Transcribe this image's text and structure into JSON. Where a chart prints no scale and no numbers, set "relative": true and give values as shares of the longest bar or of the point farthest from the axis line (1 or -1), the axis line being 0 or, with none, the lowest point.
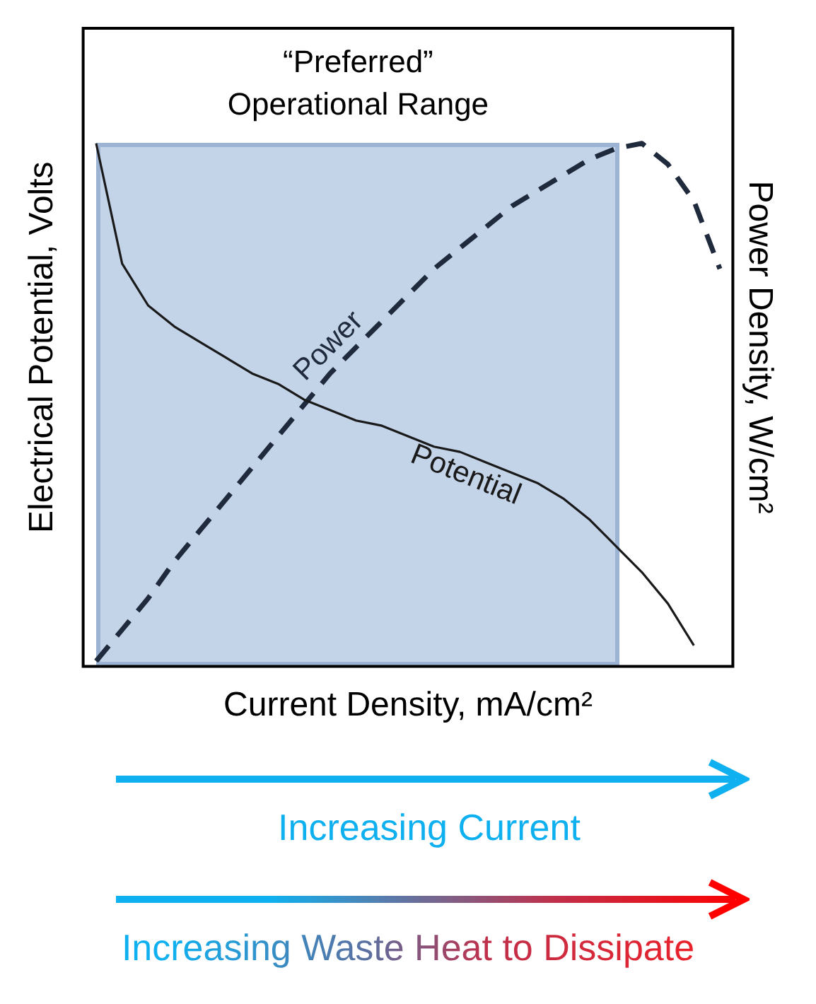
{
  "chart_data": {
    "type": "line",
    "relative": true,
    "xlabel": "Current Density, mA/cm²",
    "ylabel": "Electrical Potential, Volts",
    "y2label": "Power Density, W/cm²",
    "categories": [
      null,
      null,
      null,
      null,
      null,
      null,
      null,
      null,
      null,
      null,
      null,
      null,
      null,
      null,
      null,
      null,
      null,
      null,
      null,
      null,
      null,
      null,
      null,
      null,
      null
    ],
    "series": [
      {
        "name": "Potential",
        "color": "#1a1a1a",
        "line_style": "solid",
        "values": [
          1.0,
          0.77,
          0.69,
          0.65,
          0.62,
          0.59,
          0.56,
          0.54,
          0.51,
          0.49,
          0.47,
          0.46,
          0.44,
          0.42,
          0.41,
          0.39,
          0.37,
          0.35,
          0.32,
          0.28,
          0.23,
          0.18,
          0.12,
          0.04,
          null
        ]
      },
      {
        "name": "Power",
        "color": "#1f2a3c",
        "line_style": "dashed",
        "values": [
          0.01,
          0.07,
          0.13,
          0.2,
          0.26,
          0.32,
          0.38,
          0.44,
          0.5,
          0.56,
          0.61,
          0.66,
          0.71,
          0.76,
          0.8,
          0.84,
          0.88,
          0.91,
          0.94,
          0.97,
          0.99,
          1.0,
          0.96,
          0.89,
          0.76
        ]
      }
    ],
    "annotations": [
      "“Preferred” Operational Range",
      "Increasing Current",
      "Increasing Waste Heat to Dissipate"
    ],
    "legend": false,
    "grid": false,
    "marker": "none"
  }
}
